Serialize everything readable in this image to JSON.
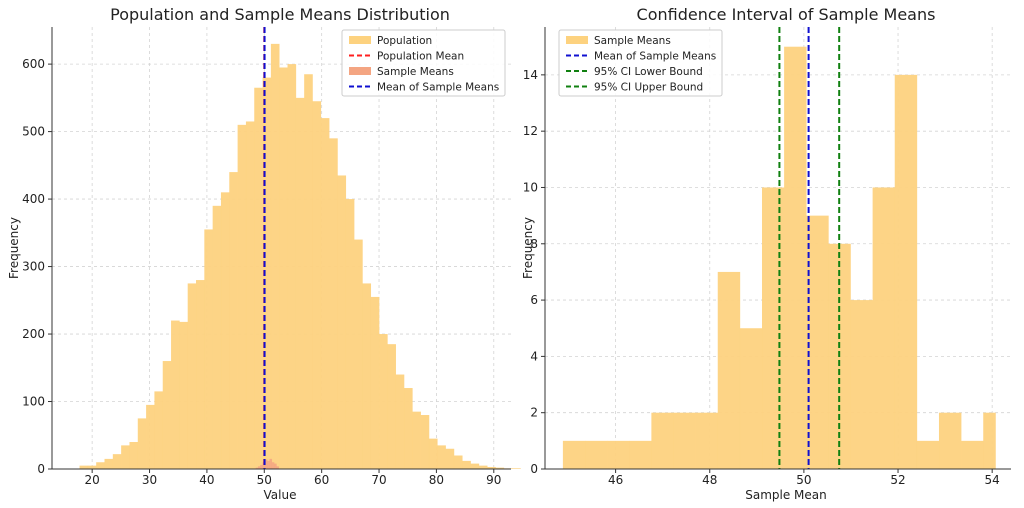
{
  "chart_data": [
    {
      "type": "histogram",
      "title": "Population and Sample Means Distribution",
      "xlabel": "Value",
      "ylabel": "Frequency",
      "xlim": [
        13,
        93
      ],
      "ylim": [
        0,
        655
      ],
      "xticks": [
        20,
        30,
        40,
        50,
        60,
        70,
        80,
        90
      ],
      "yticks": [
        0,
        100,
        200,
        300,
        400,
        500,
        600
      ],
      "grid": true,
      "legend_position": "top-right",
      "legend": [
        "Population",
        "Population Mean",
        "Sample Means",
        "Mean of Sample Means"
      ],
      "series": [
        {
          "name": "Population",
          "color": "#fdd27f",
          "bin_start": 17.8,
          "bin_width": 1.45,
          "values": [
            5,
            5,
            10,
            15,
            22,
            35,
            40,
            75,
            95,
            115,
            160,
            220,
            218,
            275,
            280,
            355,
            390,
            410,
            440,
            510,
            515,
            565,
            580,
            630,
            595,
            600,
            550,
            585,
            545,
            520,
            490,
            435,
            400,
            340,
            275,
            255,
            200,
            185,
            140,
            120,
            85,
            80,
            45,
            35,
            30,
            20,
            12,
            8,
            5,
            3,
            2,
            1,
            1
          ]
        },
        {
          "name": "Sample Means",
          "color": "#f4a582",
          "bin_start": 48.5,
          "bin_width": 0.4,
          "values": [
            2,
            4,
            6,
            10,
            14,
            12,
            15,
            10,
            8,
            4
          ]
        }
      ],
      "vlines": [
        {
          "name": "Population Mean",
          "x": 50.0,
          "color": "#ff2020"
        },
        {
          "name": "Mean of Sample Means",
          "x": 50.05,
          "color": "#1010d0"
        }
      ]
    },
    {
      "type": "histogram",
      "title": "Confidence Interval of Sample Means",
      "xlabel": "Sample Mean",
      "ylabel": "Frequency",
      "xlim": [
        44.5,
        54.4
      ],
      "ylim": [
        0,
        15.7
      ],
      "xticks": [
        46,
        48,
        50,
        52,
        54
      ],
      "yticks": [
        0,
        2,
        4,
        6,
        8,
        10,
        12,
        14
      ],
      "grid": true,
      "legend_position": "top-left",
      "legend": [
        "Sample Means",
        "Mean of Sample Means",
        "95% CI Lower Bound",
        "95% CI Upper Bound"
      ],
      "series": [
        {
          "name": "Sample Means",
          "color": "#fdd27f",
          "bin_edges": [
            44.88,
            45.35,
            45.82,
            46.29,
            46.76,
            47.23,
            47.7,
            48.17,
            48.64,
            49.11,
            49.58,
            50.05,
            50.52,
            50.99,
            51.46,
            51.93,
            52.4,
            52.87,
            53.34,
            53.81,
            54.07
          ],
          "values": [
            1,
            1,
            1,
            1,
            2,
            2,
            2,
            7,
            5,
            10,
            15,
            9,
            8,
            6,
            10,
            14,
            1,
            2,
            1,
            2
          ]
        }
      ],
      "vlines": [
        {
          "name": "Mean of Sample Means",
          "x": 50.1,
          "color": "#1010d0"
        },
        {
          "name": "95% CI Lower Bound",
          "x": 49.48,
          "color": "#108010"
        },
        {
          "name": "95% CI Upper Bound",
          "x": 50.75,
          "color": "#108010"
        }
      ]
    }
  ]
}
